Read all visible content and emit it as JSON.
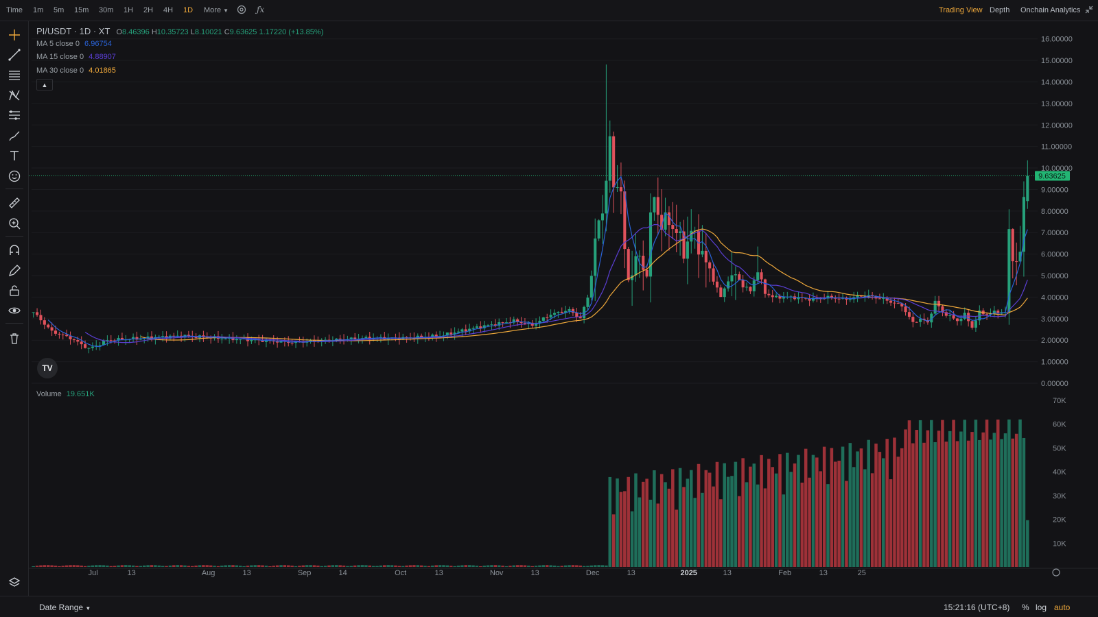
{
  "topbar": {
    "time_label": "Time",
    "timeframes": [
      "1m",
      "5m",
      "15m",
      "30m",
      "1H",
      "2H",
      "4H",
      "1D"
    ],
    "active_timeframe": "1D",
    "more_label": "More",
    "right_tabs": [
      "Trading View",
      "Depth",
      "Onchain Analytics"
    ],
    "active_right_tab": "Trading View"
  },
  "legend": {
    "symbol": "PI/USDT · 1D · XT",
    "open_prefix": "O",
    "open": "8.46396",
    "high_prefix": "H",
    "high": "10.35723",
    "low_prefix": "L",
    "low": "8.10021",
    "close_prefix": "C",
    "close": "9.63625",
    "change": "1.17220 (+13.85%)",
    "ma5_label": "MA 5 close 0",
    "ma5_value": "6.96754",
    "ma15_label": "MA 15 close 0",
    "ma15_value": "4.88907",
    "ma30_label": "MA 30 close 0",
    "ma30_value": "4.01865",
    "volume_label": "Volume",
    "volume_value": "19.651K"
  },
  "colors": {
    "up": "#26a17b",
    "down": "#e0525c",
    "vol_up": "#1f6e5a",
    "vol_down": "#9e3138",
    "ma5": "#2a63d9",
    "ma15": "#5b3fd6",
    "ma30": "#f0a93b",
    "accent": "#f0a93b",
    "price_tag": "#22b573"
  },
  "price_axis": {
    "labels": [
      "16.00000",
      "15.00000",
      "14.00000",
      "13.00000",
      "12.00000",
      "11.00000",
      "10.00000",
      "9.00000",
      "8.00000",
      "7.00000",
      "6.00000",
      "5.00000",
      "4.00000",
      "3.00000",
      "2.00000",
      "1.00000",
      "0.00000"
    ],
    "current_price": "9.63625"
  },
  "volume_axis": {
    "labels": [
      "70K",
      "60K",
      "50K",
      "40K",
      "30K",
      "20K",
      "10K"
    ]
  },
  "time_axis": {
    "labels": [
      "Jul",
      "13",
      "Aug",
      "13",
      "Sep",
      "14",
      "Oct",
      "13",
      "Nov",
      "13",
      "Dec",
      "13",
      "2025",
      "13",
      "Feb",
      "13",
      "25"
    ]
  },
  "bottombar": {
    "date_range_label": "Date Range",
    "clock": "15:21:16 (UTC+8)",
    "percent_label": "%",
    "log_label": "log",
    "auto_label": "auto"
  },
  "icons": {
    "tools": [
      "crosshair-icon",
      "trend-line-icon",
      "horizontal-lines-icon",
      "pattern-icon",
      "fib-icon",
      "brush-icon",
      "text-icon",
      "emoji-icon",
      "ruler-icon",
      "zoom-in-icon",
      "magnet-icon",
      "lock-draw-icon",
      "lock-icon",
      "eye-icon",
      "trash-icon"
    ]
  },
  "chart_data": {
    "type": "candlestick",
    "title": "PI/USDT · 1D · XT",
    "ylim": [
      0,
      16.5
    ],
    "volume_ylim": [
      0,
      72000
    ],
    "grid": true,
    "x_ticks": [
      "Jul",
      "13",
      "Aug",
      "13",
      "Sep",
      "14",
      "Oct",
      "13",
      "Nov",
      "13",
      "Dec",
      "13",
      "2025",
      "13",
      "Feb",
      "13",
      "25"
    ],
    "ohlc_tail": {
      "open": 8.46396,
      "high": 10.35723,
      "low": 8.10021,
      "close": 9.63625
    },
    "anchor_closes": [
      [
        0,
        3.3
      ],
      [
        5,
        2.4
      ],
      [
        10,
        2.1
      ],
      [
        15,
        1.6
      ],
      [
        20,
        2.0
      ],
      [
        30,
        2.1
      ],
      [
        40,
        2.2
      ],
      [
        50,
        2.1
      ],
      [
        60,
        2.0
      ],
      [
        70,
        1.9
      ],
      [
        80,
        2.0
      ],
      [
        90,
        2.1
      ],
      [
        100,
        2.1
      ],
      [
        110,
        2.2
      ],
      [
        120,
        2.6
      ],
      [
        130,
        2.9
      ],
      [
        135,
        2.7
      ],
      [
        140,
        3.2
      ],
      [
        145,
        3.4
      ],
      [
        148,
        3.0
      ],
      [
        150,
        4.0
      ],
      [
        152,
        6.5
      ],
      [
        154,
        8.2
      ],
      [
        155,
        9.5
      ],
      [
        156,
        11.2
      ],
      [
        157,
        9.0
      ],
      [
        158,
        9.5
      ],
      [
        159,
        8.8
      ],
      [
        160,
        6.0
      ],
      [
        161,
        4.8
      ],
      [
        162,
        5.4
      ],
      [
        164,
        5.8
      ],
      [
        166,
        5.0
      ],
      [
        167,
        7.5
      ],
      [
        168,
        8.7
      ],
      [
        170,
        7.3
      ],
      [
        172,
        7.6
      ],
      [
        174,
        7.0
      ],
      [
        176,
        6.2
      ],
      [
        178,
        7.0
      ],
      [
        180,
        6.5
      ],
      [
        182,
        5.5
      ],
      [
        184,
        4.8
      ],
      [
        186,
        4.0
      ],
      [
        188,
        4.8
      ],
      [
        190,
        5.1
      ],
      [
        192,
        4.5
      ],
      [
        194,
        4.3
      ],
      [
        196,
        5.3
      ],
      [
        198,
        4.2
      ],
      [
        200,
        4.0
      ],
      [
        205,
        4.0
      ],
      [
        210,
        3.9
      ],
      [
        215,
        4.0
      ],
      [
        220,
        3.9
      ],
      [
        225,
        4.1
      ],
      [
        230,
        3.9
      ],
      [
        235,
        3.6
      ],
      [
        238,
        2.8
      ],
      [
        240,
        3.0
      ],
      [
        242,
        2.8
      ],
      [
        244,
        3.8
      ],
      [
        246,
        3.3
      ],
      [
        248,
        3.1
      ],
      [
        250,
        2.9
      ],
      [
        252,
        3.2
      ],
      [
        254,
        2.6
      ],
      [
        256,
        3.3
      ],
      [
        258,
        3.2
      ],
      [
        260,
        3.3
      ],
      [
        263,
        3.3
      ],
      [
        264,
        6.8
      ],
      [
        265,
        6.2
      ],
      [
        266,
        5.5
      ],
      [
        267,
        6.0
      ],
      [
        268,
        8.46
      ],
      [
        269,
        9.64
      ]
    ],
    "ma_lines": [
      "MA 5",
      "MA 15",
      "MA 30"
    ],
    "volume_note": "near zero until mid-November, then 20K-60K"
  }
}
